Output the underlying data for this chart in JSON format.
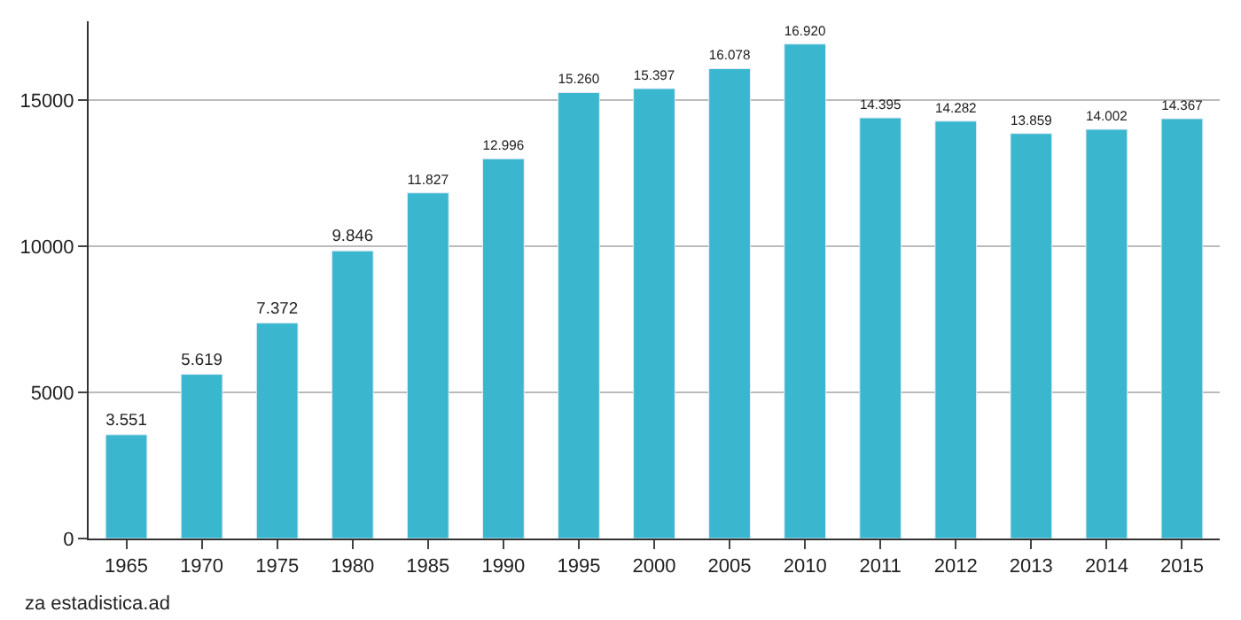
{
  "chart_data": {
    "type": "bar",
    "categories": [
      "1965",
      "1970",
      "1975",
      "1980",
      "1985",
      "1990",
      "1995",
      "2000",
      "2005",
      "2010",
      "2011",
      "2012",
      "2013",
      "2014",
      "2015"
    ],
    "values": [
      3551,
      5619,
      7372,
      9846,
      11827,
      12996,
      15260,
      15397,
      16078,
      16920,
      14395,
      14282,
      13859,
      14002,
      14367
    ],
    "value_labels": [
      "3.551",
      "5.619",
      "7.372",
      "9.846",
      "11.827",
      "12.996",
      "15.260",
      "15.397",
      "16.078",
      "16.920",
      "14.395",
      "14.282",
      "13.859",
      "14.002",
      "14.367"
    ],
    "color": "#3ab7cf",
    "ylim": [
      0,
      17700
    ],
    "yticks": [
      0,
      5000,
      10000,
      15000
    ],
    "grid": "y",
    "annotations": [
      "za estadistica.ad"
    ]
  }
}
